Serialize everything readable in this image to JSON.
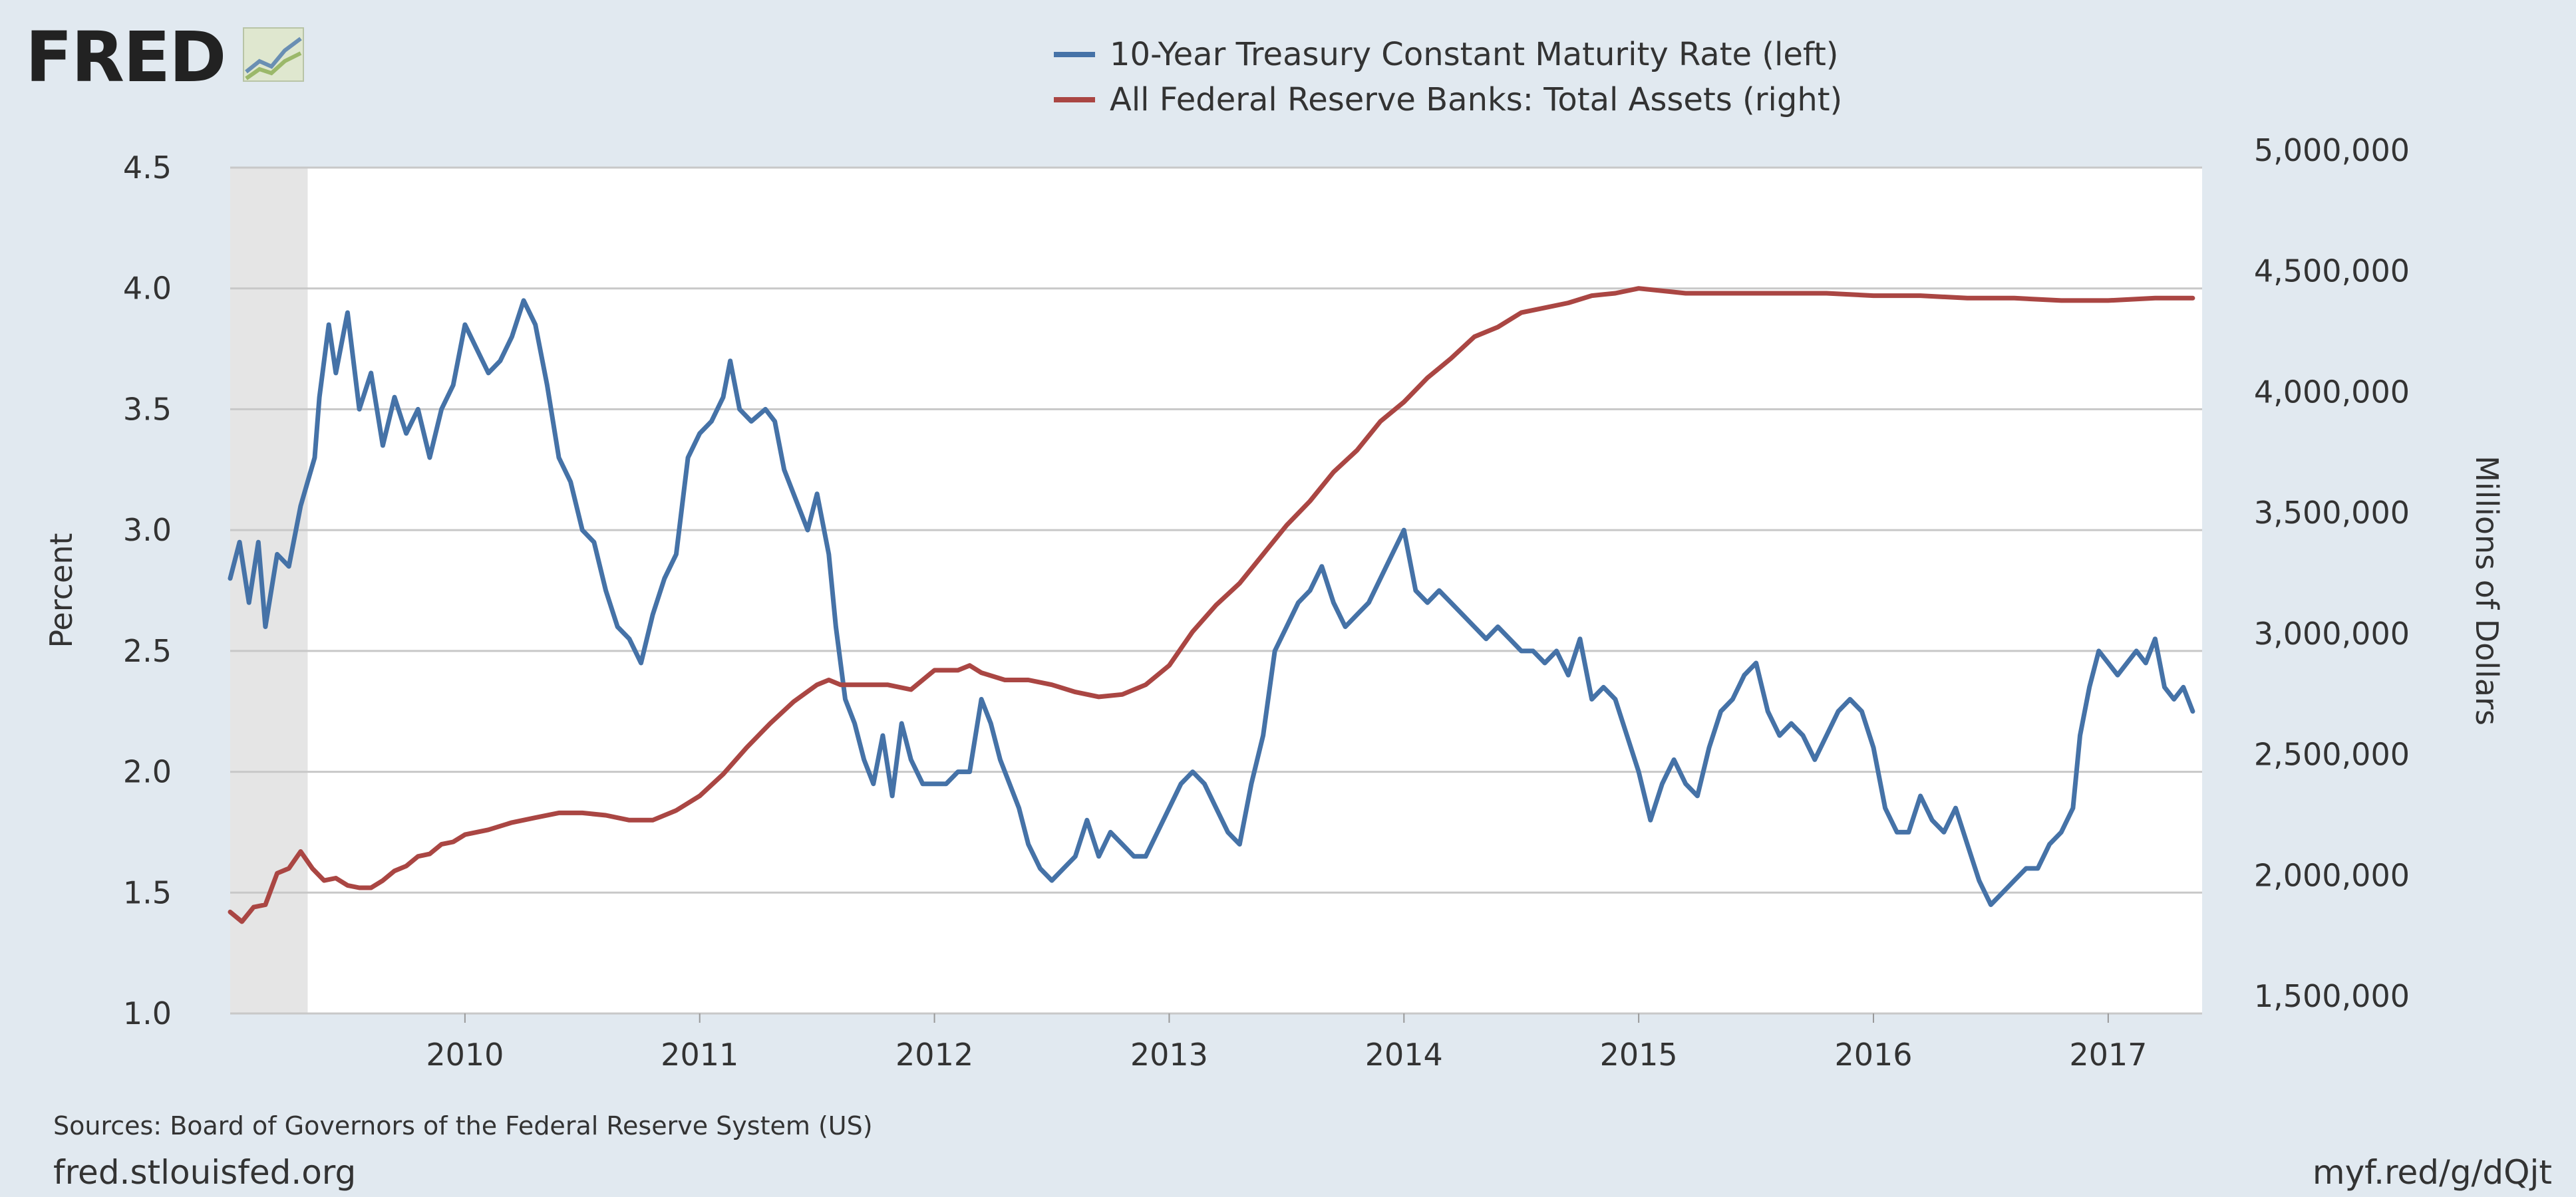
{
  "branding": {
    "logo_text": "FRED",
    "logo_icon": "trend-lines-icon",
    "site_link": "fred.stlouisfed.org",
    "short_link": "myf.red/g/dQjt"
  },
  "colors": {
    "background": "#e1e9f0",
    "plot_background": "#ffffff",
    "recession_shade": "#e5e5e5",
    "gridline": "#c8c8c8",
    "series_left": "#4572a7",
    "series_right": "#aa4643"
  },
  "footer": {
    "sources": "Sources: Board of Governors of the Federal Reserve System (US)"
  },
  "chart_data": {
    "type": "line",
    "title": "",
    "legend_position": "top-center",
    "x": {
      "range": [
        2009.0,
        2017.4
      ],
      "tick_values": [
        2010,
        2011,
        2012,
        2013,
        2014,
        2015,
        2016,
        2017
      ],
      "tick_labels": [
        "2010",
        "2011",
        "2012",
        "2013",
        "2014",
        "2015",
        "2016",
        "2017"
      ]
    },
    "y_left": {
      "label": "Percent",
      "range": [
        1.0,
        4.5
      ],
      "tick_values": [
        1.0,
        1.5,
        2.0,
        2.5,
        3.0,
        3.5,
        4.0,
        4.5
      ],
      "tick_labels": [
        "1.0",
        "1.5",
        "2.0",
        "2.5",
        "3.0",
        "3.5",
        "4.0",
        "4.5"
      ]
    },
    "y_right": {
      "label": "Millions of Dollars",
      "range": [
        1500000,
        5000000
      ],
      "tick_values": [
        1500000,
        2000000,
        2500000,
        3000000,
        3500000,
        4000000,
        4500000,
        5000000
      ],
      "tick_labels": [
        "1,500,000",
        "2,000,000",
        "2,500,000",
        "3,000,000",
        "3,500,000",
        "4,000,000",
        "4,500,000",
        "5,000,000"
      ]
    },
    "recession_shading": [
      {
        "start": 2009.0,
        "end": 2009.33
      }
    ],
    "grid": true,
    "series": [
      {
        "name": "10-Year Treasury Constant Maturity Rate (left)",
        "axis": "left",
        "color": "#4572a7",
        "points": [
          [
            2009.0,
            2.8
          ],
          [
            2009.04,
            2.95
          ],
          [
            2009.08,
            2.7
          ],
          [
            2009.12,
            2.95
          ],
          [
            2009.15,
            2.6
          ],
          [
            2009.2,
            2.9
          ],
          [
            2009.25,
            2.85
          ],
          [
            2009.3,
            3.1
          ],
          [
            2009.33,
            3.2
          ],
          [
            2009.36,
            3.3
          ],
          [
            2009.38,
            3.55
          ],
          [
            2009.42,
            3.85
          ],
          [
            2009.45,
            3.65
          ],
          [
            2009.5,
            3.9
          ],
          [
            2009.55,
            3.5
          ],
          [
            2009.6,
            3.65
          ],
          [
            2009.65,
            3.35
          ],
          [
            2009.7,
            3.55
          ],
          [
            2009.75,
            3.4
          ],
          [
            2009.8,
            3.5
          ],
          [
            2009.85,
            3.3
          ],
          [
            2009.9,
            3.5
          ],
          [
            2009.95,
            3.6
          ],
          [
            2010.0,
            3.85
          ],
          [
            2010.05,
            3.75
          ],
          [
            2010.1,
            3.65
          ],
          [
            2010.15,
            3.7
          ],
          [
            2010.2,
            3.8
          ],
          [
            2010.25,
            3.95
          ],
          [
            2010.3,
            3.85
          ],
          [
            2010.35,
            3.6
          ],
          [
            2010.4,
            3.3
          ],
          [
            2010.45,
            3.2
          ],
          [
            2010.5,
            3.0
          ],
          [
            2010.55,
            2.95
          ],
          [
            2010.6,
            2.75
          ],
          [
            2010.65,
            2.6
          ],
          [
            2010.7,
            2.55
          ],
          [
            2010.75,
            2.45
          ],
          [
            2010.8,
            2.65
          ],
          [
            2010.85,
            2.8
          ],
          [
            2010.9,
            2.9
          ],
          [
            2010.95,
            3.3
          ],
          [
            2011.0,
            3.4
          ],
          [
            2011.05,
            3.45
          ],
          [
            2011.1,
            3.55
          ],
          [
            2011.13,
            3.7
          ],
          [
            2011.17,
            3.5
          ],
          [
            2011.22,
            3.45
          ],
          [
            2011.28,
            3.5
          ],
          [
            2011.32,
            3.45
          ],
          [
            2011.36,
            3.25
          ],
          [
            2011.42,
            3.1
          ],
          [
            2011.46,
            3.0
          ],
          [
            2011.5,
            3.15
          ],
          [
            2011.55,
            2.9
          ],
          [
            2011.58,
            2.6
          ],
          [
            2011.62,
            2.3
          ],
          [
            2011.66,
            2.2
          ],
          [
            2011.7,
            2.05
          ],
          [
            2011.74,
            1.95
          ],
          [
            2011.78,
            2.15
          ],
          [
            2011.82,
            1.9
          ],
          [
            2011.86,
            2.2
          ],
          [
            2011.9,
            2.05
          ],
          [
            2011.95,
            1.95
          ],
          [
            2012.0,
            1.95
          ],
          [
            2012.05,
            1.95
          ],
          [
            2012.1,
            2.0
          ],
          [
            2012.15,
            2.0
          ],
          [
            2012.2,
            2.3
          ],
          [
            2012.24,
            2.2
          ],
          [
            2012.28,
            2.05
          ],
          [
            2012.32,
            1.95
          ],
          [
            2012.36,
            1.85
          ],
          [
            2012.4,
            1.7
          ],
          [
            2012.45,
            1.6
          ],
          [
            2012.5,
            1.55
          ],
          [
            2012.55,
            1.6
          ],
          [
            2012.6,
            1.65
          ],
          [
            2012.65,
            1.8
          ],
          [
            2012.7,
            1.65
          ],
          [
            2012.75,
            1.75
          ],
          [
            2012.8,
            1.7
          ],
          [
            2012.85,
            1.65
          ],
          [
            2012.9,
            1.65
          ],
          [
            2012.95,
            1.75
          ],
          [
            2013.0,
            1.85
          ],
          [
            2013.05,
            1.95
          ],
          [
            2013.1,
            2.0
          ],
          [
            2013.15,
            1.95
          ],
          [
            2013.2,
            1.85
          ],
          [
            2013.25,
            1.75
          ],
          [
            2013.3,
            1.7
          ],
          [
            2013.35,
            1.95
          ],
          [
            2013.4,
            2.15
          ],
          [
            2013.45,
            2.5
          ],
          [
            2013.5,
            2.6
          ],
          [
            2013.55,
            2.7
          ],
          [
            2013.6,
            2.75
          ],
          [
            2013.65,
            2.85
          ],
          [
            2013.7,
            2.7
          ],
          [
            2013.75,
            2.6
          ],
          [
            2013.8,
            2.65
          ],
          [
            2013.85,
            2.7
          ],
          [
            2013.9,
            2.8
          ],
          [
            2013.95,
            2.9
          ],
          [
            2014.0,
            3.0
          ],
          [
            2014.05,
            2.75
          ],
          [
            2014.1,
            2.7
          ],
          [
            2014.15,
            2.75
          ],
          [
            2014.2,
            2.7
          ],
          [
            2014.25,
            2.65
          ],
          [
            2014.3,
            2.6
          ],
          [
            2014.35,
            2.55
          ],
          [
            2014.4,
            2.6
          ],
          [
            2014.45,
            2.55
          ],
          [
            2014.5,
            2.5
          ],
          [
            2014.55,
            2.5
          ],
          [
            2014.6,
            2.45
          ],
          [
            2014.65,
            2.5
          ],
          [
            2014.7,
            2.4
          ],
          [
            2014.75,
            2.55
          ],
          [
            2014.8,
            2.3
          ],
          [
            2014.85,
            2.35
          ],
          [
            2014.9,
            2.3
          ],
          [
            2014.95,
            2.15
          ],
          [
            2015.0,
            2.0
          ],
          [
            2015.05,
            1.8
          ],
          [
            2015.1,
            1.95
          ],
          [
            2015.15,
            2.05
          ],
          [
            2015.2,
            1.95
          ],
          [
            2015.25,
            1.9
          ],
          [
            2015.3,
            2.1
          ],
          [
            2015.35,
            2.25
          ],
          [
            2015.4,
            2.3
          ],
          [
            2015.45,
            2.4
          ],
          [
            2015.5,
            2.45
          ],
          [
            2015.55,
            2.25
          ],
          [
            2015.6,
            2.15
          ],
          [
            2015.65,
            2.2
          ],
          [
            2015.7,
            2.15
          ],
          [
            2015.75,
            2.05
          ],
          [
            2015.8,
            2.15
          ],
          [
            2015.85,
            2.25
          ],
          [
            2015.9,
            2.3
          ],
          [
            2015.95,
            2.25
          ],
          [
            2016.0,
            2.1
          ],
          [
            2016.05,
            1.85
          ],
          [
            2016.1,
            1.75
          ],
          [
            2016.15,
            1.75
          ],
          [
            2016.2,
            1.9
          ],
          [
            2016.25,
            1.8
          ],
          [
            2016.3,
            1.75
          ],
          [
            2016.35,
            1.85
          ],
          [
            2016.4,
            1.7
          ],
          [
            2016.45,
            1.55
          ],
          [
            2016.5,
            1.45
          ],
          [
            2016.55,
            1.5
          ],
          [
            2016.6,
            1.55
          ],
          [
            2016.65,
            1.6
          ],
          [
            2016.7,
            1.6
          ],
          [
            2016.75,
            1.7
          ],
          [
            2016.8,
            1.75
          ],
          [
            2016.85,
            1.85
          ],
          [
            2016.88,
            2.15
          ],
          [
            2016.92,
            2.35
          ],
          [
            2016.96,
            2.5
          ],
          [
            2017.0,
            2.45
          ],
          [
            2017.04,
            2.4
          ],
          [
            2017.08,
            2.45
          ],
          [
            2017.12,
            2.5
          ],
          [
            2017.16,
            2.45
          ],
          [
            2017.2,
            2.55
          ],
          [
            2017.24,
            2.35
          ],
          [
            2017.28,
            2.3
          ],
          [
            2017.32,
            2.35
          ],
          [
            2017.36,
            2.25
          ]
        ]
      },
      {
        "name": "All Federal Reserve Banks: Total Assets (right)",
        "axis": "right",
        "color": "#aa4643",
        "points": [
          [
            2009.0,
            1920000
          ],
          [
            2009.05,
            1880000
          ],
          [
            2009.1,
            1940000
          ],
          [
            2009.15,
            1950000
          ],
          [
            2009.2,
            2080000
          ],
          [
            2009.25,
            2100000
          ],
          [
            2009.3,
            2170000
          ],
          [
            2009.35,
            2100000
          ],
          [
            2009.4,
            2050000
          ],
          [
            2009.45,
            2060000
          ],
          [
            2009.5,
            2030000
          ],
          [
            2009.55,
            2020000
          ],
          [
            2009.6,
            2020000
          ],
          [
            2009.65,
            2050000
          ],
          [
            2009.7,
            2090000
          ],
          [
            2009.75,
            2110000
          ],
          [
            2009.8,
            2150000
          ],
          [
            2009.85,
            2160000
          ],
          [
            2009.9,
            2200000
          ],
          [
            2009.95,
            2210000
          ],
          [
            2010.0,
            2240000
          ],
          [
            2010.1,
            2260000
          ],
          [
            2010.2,
            2290000
          ],
          [
            2010.3,
            2310000
          ],
          [
            2010.4,
            2330000
          ],
          [
            2010.5,
            2330000
          ],
          [
            2010.6,
            2320000
          ],
          [
            2010.7,
            2300000
          ],
          [
            2010.8,
            2300000
          ],
          [
            2010.9,
            2340000
          ],
          [
            2011.0,
            2400000
          ],
          [
            2011.1,
            2490000
          ],
          [
            2011.2,
            2600000
          ],
          [
            2011.3,
            2700000
          ],
          [
            2011.4,
            2790000
          ],
          [
            2011.5,
            2860000
          ],
          [
            2011.55,
            2880000
          ],
          [
            2011.6,
            2860000
          ],
          [
            2011.7,
            2860000
          ],
          [
            2011.8,
            2860000
          ],
          [
            2011.9,
            2840000
          ],
          [
            2012.0,
            2920000
          ],
          [
            2012.1,
            2920000
          ],
          [
            2012.15,
            2940000
          ],
          [
            2012.2,
            2910000
          ],
          [
            2012.3,
            2880000
          ],
          [
            2012.4,
            2880000
          ],
          [
            2012.5,
            2860000
          ],
          [
            2012.6,
            2830000
          ],
          [
            2012.7,
            2810000
          ],
          [
            2012.8,
            2820000
          ],
          [
            2012.9,
            2860000
          ],
          [
            2013.0,
            2940000
          ],
          [
            2013.1,
            3080000
          ],
          [
            2013.2,
            3190000
          ],
          [
            2013.3,
            3280000
          ],
          [
            2013.4,
            3400000
          ],
          [
            2013.5,
            3520000
          ],
          [
            2013.6,
            3620000
          ],
          [
            2013.7,
            3740000
          ],
          [
            2013.8,
            3830000
          ],
          [
            2013.9,
            3950000
          ],
          [
            2014.0,
            4030000
          ],
          [
            2014.1,
            4130000
          ],
          [
            2014.2,
            4210000
          ],
          [
            2014.3,
            4300000
          ],
          [
            2014.4,
            4340000
          ],
          [
            2014.5,
            4400000
          ],
          [
            2014.6,
            4420000
          ],
          [
            2014.7,
            4440000
          ],
          [
            2014.8,
            4470000
          ],
          [
            2014.9,
            4480000
          ],
          [
            2015.0,
            4500000
          ],
          [
            2015.2,
            4480000
          ],
          [
            2015.4,
            4480000
          ],
          [
            2015.6,
            4480000
          ],
          [
            2015.8,
            4480000
          ],
          [
            2016.0,
            4470000
          ],
          [
            2016.2,
            4470000
          ],
          [
            2016.4,
            4460000
          ],
          [
            2016.6,
            4460000
          ],
          [
            2016.8,
            4450000
          ],
          [
            2017.0,
            4450000
          ],
          [
            2017.2,
            4460000
          ],
          [
            2017.36,
            4460000
          ]
        ]
      }
    ]
  }
}
